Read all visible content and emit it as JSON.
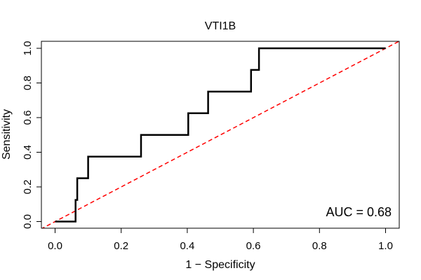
{
  "chart_data": {
    "type": "line",
    "title": "VTI1B",
    "xlabel": "1 − Specificity",
    "ylabel": "Sensitivity",
    "xlim": [
      0.0,
      1.0
    ],
    "ylim": [
      0.0,
      1.0
    ],
    "xticks": [
      0.0,
      0.2,
      0.4,
      0.6,
      0.8,
      1.0
    ],
    "yticks": [
      0.0,
      0.2,
      0.4,
      0.6,
      0.8,
      1.0
    ],
    "xtick_labels": [
      "0.0",
      "0.2",
      "0.4",
      "0.6",
      "0.8",
      "1.0"
    ],
    "ytick_labels": [
      "0.0",
      "0.2",
      "0.4",
      "0.6",
      "0.8",
      "1.0"
    ],
    "grid": false,
    "annotation": "AUC = 0.68",
    "series": [
      {
        "name": "ROC curve",
        "color": "#000000",
        "x": [
          0.0,
          0.062,
          0.062,
          0.067,
          0.067,
          0.1,
          0.1,
          0.26,
          0.26,
          0.403,
          0.403,
          0.463,
          0.463,
          0.593,
          0.593,
          0.617,
          0.617,
          1.0
        ],
        "y": [
          0.0,
          0.0,
          0.125,
          0.125,
          0.25,
          0.25,
          0.375,
          0.375,
          0.5,
          0.5,
          0.625,
          0.625,
          0.75,
          0.75,
          0.875,
          0.875,
          1.0,
          1.0
        ]
      },
      {
        "name": "Reference line",
        "color": "#ff0000",
        "style": "dashed",
        "x": [
          0.0,
          1.0
        ],
        "y": [
          0.0,
          1.0
        ]
      }
    ]
  }
}
